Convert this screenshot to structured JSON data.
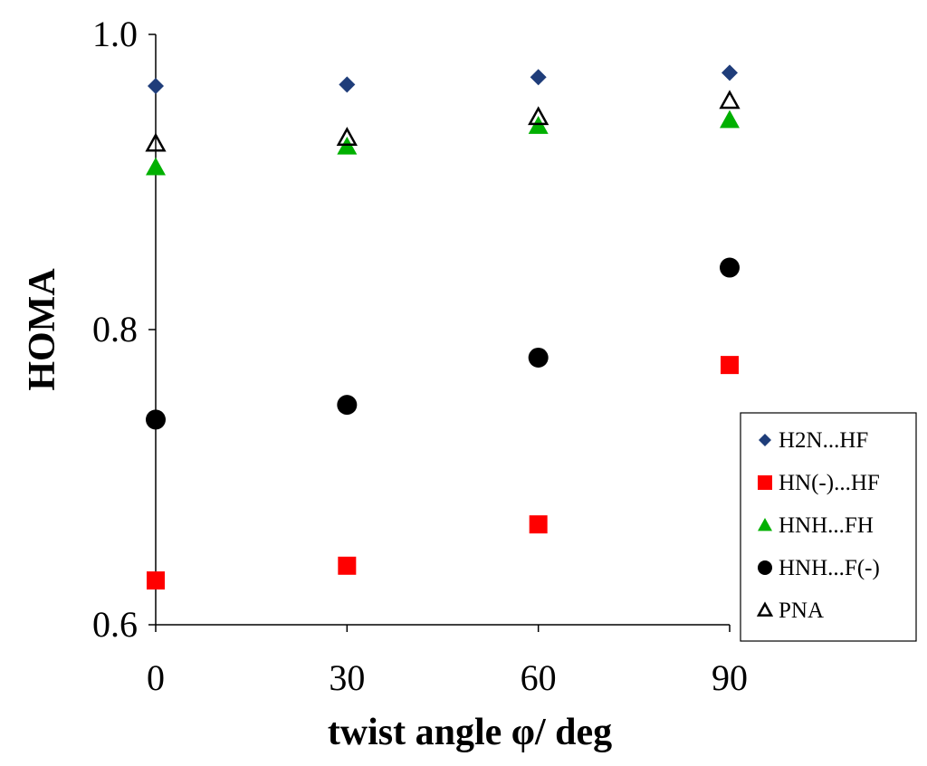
{
  "chart_data": {
    "type": "scatter",
    "title": "",
    "xlabel": "twist angle φ/ deg",
    "ylabel": "HOMA",
    "xlim": [
      0,
      90
    ],
    "ylim": [
      0.6,
      1.0
    ],
    "x_ticks": [
      0,
      30,
      60,
      90
    ],
    "x_tick_labels": [
      "0",
      "30",
      "60",
      "90"
    ],
    "y_ticks": [
      0.6,
      0.8,
      1.0
    ],
    "y_tick_labels": [
      "0.6",
      "0.8",
      "1.0"
    ],
    "grid": false,
    "legend_position": "right",
    "x": [
      0,
      30,
      60,
      90
    ],
    "series": [
      {
        "name": "H2N...HF",
        "marker": "diamond",
        "color": "#1f3d7a",
        "values": [
          0.965,
          0.966,
          0.971,
          0.974
        ]
      },
      {
        "name": "HN(-)...HF",
        "marker": "square",
        "color": "#ff0000",
        "values": [
          0.63,
          0.64,
          0.668,
          0.776
        ]
      },
      {
        "name": "HNH...FH",
        "marker": "triangle",
        "color": "#00b000",
        "values": [
          0.91,
          0.924,
          0.938,
          0.942
        ]
      },
      {
        "name": "HNH...F(-)",
        "marker": "circle",
        "color": "#000000",
        "values": [
          0.739,
          0.749,
          0.781,
          0.842
        ]
      },
      {
        "name": "PNA",
        "marker": "triangle-open",
        "color": "#000000",
        "values": [
          0.926,
          0.93,
          0.944,
          0.955
        ]
      }
    ]
  }
}
